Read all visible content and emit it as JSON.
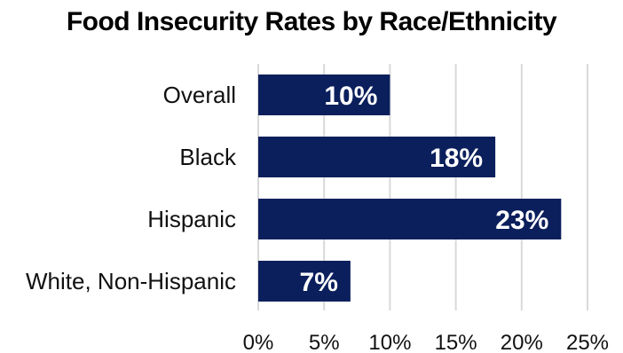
{
  "chart_data": {
    "type": "bar",
    "orientation": "horizontal",
    "title": "Food Insecurity Rates by Race/Ethnicity",
    "categories": [
      "Overall",
      "Black",
      "Hispanic",
      "White, Non-Hispanic"
    ],
    "values": [
      10,
      18,
      23,
      7
    ],
    "data_labels": [
      "10%",
      "18%",
      "23%",
      "7%"
    ],
    "xlim": [
      0,
      25
    ],
    "x_ticks": [
      0,
      5,
      10,
      15,
      20,
      25
    ],
    "x_tick_labels": [
      "0%",
      "5%",
      "10%",
      "15%",
      "20%",
      "25%"
    ],
    "grid": true,
    "legend": "none",
    "bar_color": "#0b1f5c",
    "gridline_color": "#d9d9d9"
  }
}
